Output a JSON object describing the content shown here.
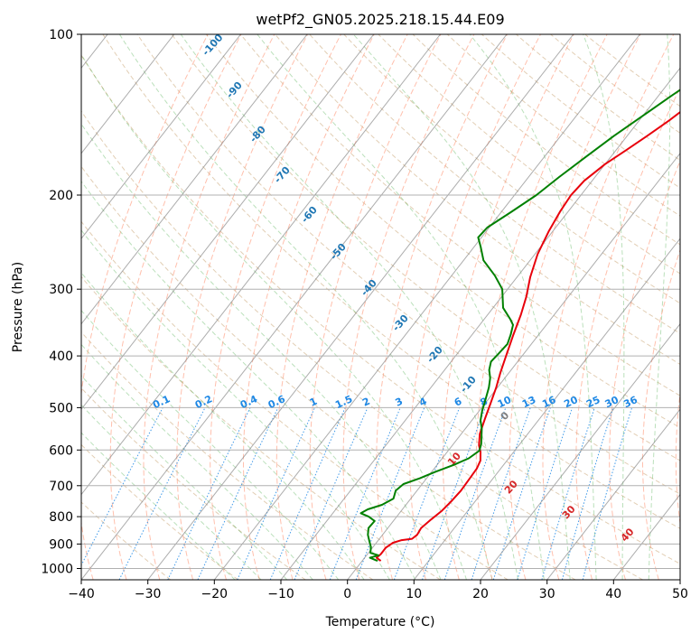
{
  "chart_data": {
    "type": "line",
    "title": "wetPf2_GN05.2025.218.15.44.E09",
    "xlabel": "Temperature (°C)",
    "ylabel": "Pressure (hPa)",
    "xlim": [
      -40,
      50
    ],
    "ylim": [
      1050,
      100
    ],
    "y_scale": "log",
    "grid": true,
    "x_ticks": [
      -40,
      -30,
      -20,
      -10,
      0,
      10,
      20,
      30,
      40,
      50
    ],
    "y_ticks": [
      1000,
      900,
      800,
      700,
      600,
      500,
      400,
      300,
      200,
      100
    ],
    "skew": "skew-T log-P",
    "series": [
      {
        "role": "temperature",
        "color": "#e8000b",
        "points": [
          [
            2.8,
            968
          ],
          [
            1.8,
            955
          ],
          [
            2.0,
            940
          ],
          [
            2.0,
            915
          ],
          [
            2.5,
            895
          ],
          [
            3.5,
            885
          ],
          [
            4.9,
            880
          ],
          [
            5.2,
            865
          ],
          [
            5.0,
            840
          ],
          [
            5.5,
            810
          ],
          [
            6.1,
            780
          ],
          [
            6.4,
            750
          ],
          [
            6.6,
            715
          ],
          [
            6.5,
            680
          ],
          [
            6.4,
            650
          ],
          [
            6.0,
            628
          ],
          [
            5.0,
            605
          ],
          [
            4.0,
            588
          ],
          [
            2.8,
            560
          ],
          [
            1.8,
            525
          ],
          [
            0.8,
            490
          ],
          [
            -0.2,
            458
          ],
          [
            -1.3,
            430
          ],
          [
            -2.4,
            400
          ],
          [
            -3.8,
            365
          ],
          [
            -5.0,
            335
          ],
          [
            -6.3,
            310
          ],
          [
            -8.0,
            285
          ],
          [
            -9.6,
            258
          ],
          [
            -10.6,
            234
          ],
          [
            -11.2,
            215
          ],
          [
            -11.5,
            200
          ],
          [
            -11.2,
            188
          ],
          [
            -10.0,
            175
          ],
          [
            -8.5,
            165
          ],
          [
            -7.0,
            155
          ],
          [
            -5.5,
            145
          ],
          [
            -4.3,
            136
          ],
          [
            -3.2,
            128
          ],
          [
            -1.0,
            120
          ],
          [
            0.5,
            113
          ],
          [
            2.0,
            107
          ],
          [
            3.3,
            101
          ],
          [
            3.6,
            100
          ]
        ]
      },
      {
        "role": "dewpoint",
        "color": "#008000",
        "points": [
          [
            2.3,
            968
          ],
          [
            0.8,
            955
          ],
          [
            1.8,
            945
          ],
          [
            0.3,
            935
          ],
          [
            -0.3,
            912
          ],
          [
            -1.2,
            890
          ],
          [
            -2.2,
            865
          ],
          [
            -2.9,
            840
          ],
          [
            -2.8,
            815
          ],
          [
            -4.2,
            800
          ],
          [
            -5.8,
            788
          ],
          [
            -5.2,
            775
          ],
          [
            -3.6,
            760
          ],
          [
            -2.6,
            740
          ],
          [
            -3.2,
            715
          ],
          [
            -2.8,
            695
          ],
          [
            -1.0,
            678
          ],
          [
            0.5,
            660
          ],
          [
            2.5,
            640
          ],
          [
            4.0,
            622
          ],
          [
            4.7,
            602
          ],
          [
            4.2,
            585
          ],
          [
            3.3,
            565
          ],
          [
            2.5,
            548
          ],
          [
            1.3,
            528
          ],
          [
            0.4,
            506
          ],
          [
            -0.3,
            485
          ],
          [
            -1.3,
            458
          ],
          [
            -2.2,
            440
          ],
          [
            -3.3,
            425
          ],
          [
            -4.0,
            410
          ],
          [
            -3.8,
            395
          ],
          [
            -3.6,
            380
          ],
          [
            -4.2,
            365
          ],
          [
            -5.0,
            350
          ],
          [
            -6.0,
            342
          ],
          [
            -8.5,
            325
          ],
          [
            -10.8,
            300
          ],
          [
            -13.5,
            283
          ],
          [
            -17.0,
            265
          ],
          [
            -19.0,
            250
          ],
          [
            -20.5,
            240
          ],
          [
            -20.3,
            230
          ],
          [
            -18.5,
            215
          ],
          [
            -16.7,
            200
          ],
          [
            -15.4,
            185
          ],
          [
            -13.8,
            170
          ],
          [
            -12.0,
            155
          ],
          [
            -10.0,
            142
          ],
          [
            -8.0,
            130
          ],
          [
            -6.2,
            121
          ],
          [
            -4.8,
            114
          ],
          [
            -3.0,
            107
          ],
          [
            -2.0,
            101
          ],
          [
            -1.8,
            100
          ]
        ]
      }
    ],
    "background_lines": {
      "dry_adiabat_color": "#d2b48c",
      "moist_adiabat_color": "#2ca02c",
      "mixing_ratio_color": "#1e88e5",
      "isotherm_color": "#808080",
      "wet_bulb_color": "#ff8c69"
    },
    "isotherm_labels": {
      "color": "#1f77b4",
      "items": [
        {
          "t": -100,
          "label": "-100"
        },
        {
          "t": -90,
          "label": "-90"
        },
        {
          "t": -80,
          "label": "-80"
        },
        {
          "t": -70,
          "label": "-70"
        },
        {
          "t": -60,
          "label": "-60"
        },
        {
          "t": -50,
          "label": "-50"
        },
        {
          "t": -40,
          "label": "-40"
        },
        {
          "t": -30,
          "label": "-30"
        },
        {
          "t": -20,
          "label": "-20"
        },
        {
          "t": -10,
          "label": "-10"
        }
      ]
    },
    "warm_isotherm_labels": {
      "color": "#d62728",
      "items": [
        {
          "t": 10,
          "p": 620,
          "label": "10"
        },
        {
          "t": 20,
          "p": 700,
          "label": "20"
        },
        {
          "t": 30,
          "p": 780,
          "label": "30"
        },
        {
          "t": 40,
          "p": 860,
          "label": "40"
        }
      ]
    },
    "zero_isotherm_label": {
      "t": 0,
      "p": 515,
      "label": "0",
      "color": "#808080"
    },
    "mixing_ratio_labels": {
      "color": "#1e88e5",
      "items": [
        {
          "w": 0.1,
          "label": "0.1"
        },
        {
          "w": 0.2,
          "label": "0.2"
        },
        {
          "w": 0.4,
          "label": "0.4"
        },
        {
          "w": 0.6,
          "label": "0.6"
        },
        {
          "w": 1.0,
          "label": "1"
        },
        {
          "w": 1.5,
          "label": "1.5"
        },
        {
          "w": 2.0,
          "label": "2"
        },
        {
          "w": 3.0,
          "label": "3"
        },
        {
          "w": 4.0,
          "label": "4"
        },
        {
          "w": 6.0,
          "label": "6"
        },
        {
          "w": 8.0,
          "label": "8"
        },
        {
          "w": 10.0,
          "label": "10"
        },
        {
          "w": 13.0,
          "label": "13"
        },
        {
          "w": 16.0,
          "label": "16"
        },
        {
          "w": 20.0,
          "label": "20"
        },
        {
          "w": 25.0,
          "label": "25"
        },
        {
          "w": 30.0,
          "label": "30"
        },
        {
          "w": 36.0,
          "label": "36"
        }
      ]
    }
  }
}
